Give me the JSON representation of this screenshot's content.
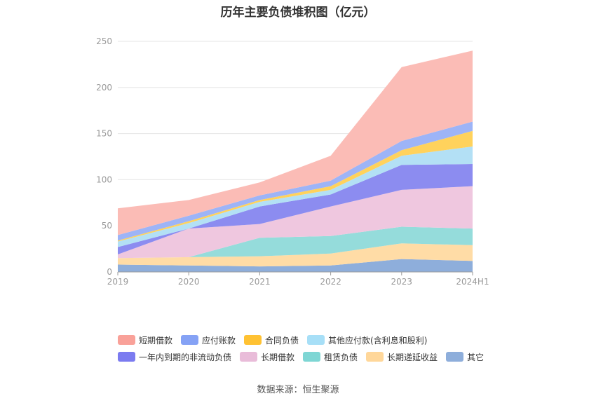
{
  "title": "历年主要负债堆积图（亿元）",
  "source": "数据来源：恒生聚源",
  "chart_data": {
    "type": "area",
    "stacked": true,
    "categories": [
      "2019",
      "2020",
      "2021",
      "2022",
      "2023",
      "2024H1"
    ],
    "ylim": [
      0,
      250
    ],
    "yticks": [
      0,
      50,
      100,
      150,
      200,
      250
    ],
    "grid": true,
    "legend_position": "bottom",
    "series": [
      {
        "name": "其它",
        "color": "#8eaedb",
        "values": [
          8,
          7,
          6,
          7,
          14,
          12
        ]
      },
      {
        "name": "长期递延收益",
        "color": "#ffdca6",
        "values": [
          7,
          9,
          11,
          13,
          17,
          17
        ]
      },
      {
        "name": "租赁负债",
        "color": "#95dcdb",
        "values": [
          0,
          0,
          20,
          19,
          18,
          18
        ]
      },
      {
        "name": "长期借款",
        "color": "#efc7df",
        "values": [
          4,
          31,
          15,
          32,
          40,
          46
        ]
      },
      {
        "name": "一年内到期的非流动负债",
        "color": "#8c8cf0",
        "values": [
          8,
          0,
          19,
          13,
          27,
          24
        ]
      },
      {
        "name": "其他应付款(含利息和股利)",
        "color": "#b3e0f5",
        "values": [
          6,
          6,
          5,
          5,
          10,
          19
        ]
      },
      {
        "name": "合同负债",
        "color": "#ffd25c",
        "values": [
          1,
          2,
          2,
          4,
          6,
          17
        ]
      },
      {
        "name": "应付账款",
        "color": "#9db4f7",
        "values": [
          6,
          6,
          5,
          6,
          10,
          10
        ]
      },
      {
        "name": "短期借款",
        "color": "#fbbcb6",
        "values": [
          29,
          17,
          14,
          27,
          80,
          77
        ]
      }
    ],
    "legend": [
      {
        "name": "短期借款",
        "color": "#f9a199"
      },
      {
        "name": "应付账款",
        "color": "#85a2f5"
      },
      {
        "name": "合同负债",
        "color": "#ffc233"
      },
      {
        "name": "其他应付款(含利息和股利)",
        "color": "#a7dff7"
      },
      {
        "name": "一年内到期的非流动负债",
        "color": "#7b7bf0"
      },
      {
        "name": "长期借款",
        "color": "#e9bcd9"
      },
      {
        "name": "租赁负债",
        "color": "#7ed6d4"
      },
      {
        "name": "长期递延收益",
        "color": "#ffd79a"
      },
      {
        "name": "其它",
        "color": "#8eaedb"
      }
    ]
  }
}
